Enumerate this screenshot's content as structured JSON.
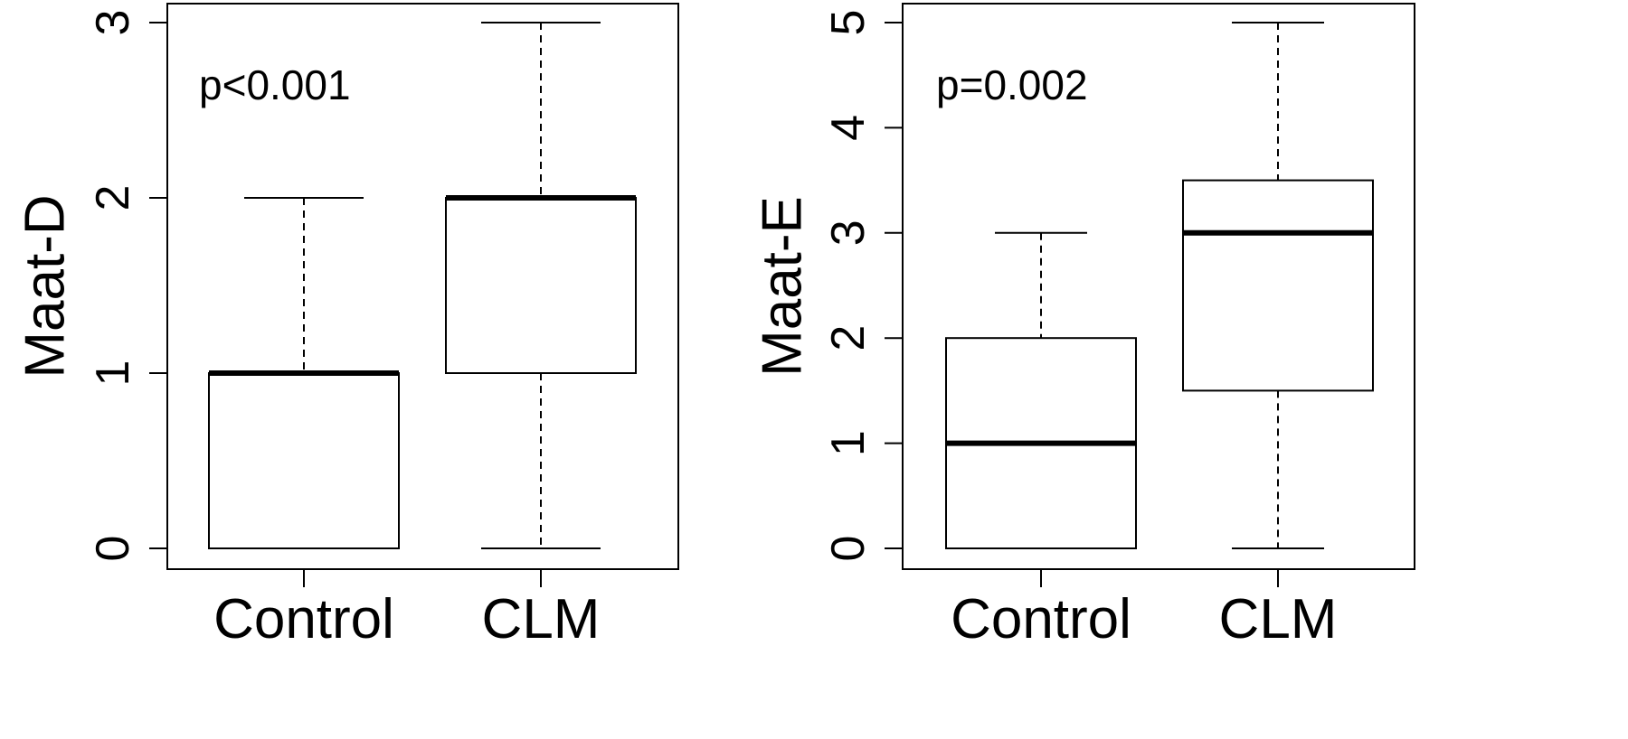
{
  "chart_data": [
    {
      "type": "boxplot",
      "title": "",
      "xlabel": "",
      "ylabel": "Maat-D",
      "ylim": [
        0,
        3
      ],
      "yticks": [
        "0",
        "1",
        "2",
        "3"
      ],
      "categories": [
        "Control",
        "CLM"
      ],
      "boxes": [
        {
          "name": "Control",
          "min": 0,
          "q1": 0,
          "median": 1,
          "q3": 1,
          "max": 2
        },
        {
          "name": "CLM",
          "min": 0,
          "q1": 1,
          "median": 2,
          "q3": 2,
          "max": 3
        }
      ],
      "annotation": "p<0.001",
      "grid": false
    },
    {
      "type": "boxplot",
      "title": "",
      "xlabel": "",
      "ylabel": "Maat-E",
      "ylim": [
        0,
        5
      ],
      "yticks": [
        "0",
        "1",
        "2",
        "3",
        "4",
        "5"
      ],
      "categories": [
        "Control",
        "CLM"
      ],
      "boxes": [
        {
          "name": "Control",
          "min": 0,
          "q1": 0,
          "median": 1,
          "q3": 2,
          "max": 3
        },
        {
          "name": "CLM",
          "min": 0,
          "q1": 1.5,
          "median": 3,
          "q3": 3.5,
          "max": 5
        }
      ],
      "annotation": "p=0.002",
      "grid": false
    }
  ]
}
